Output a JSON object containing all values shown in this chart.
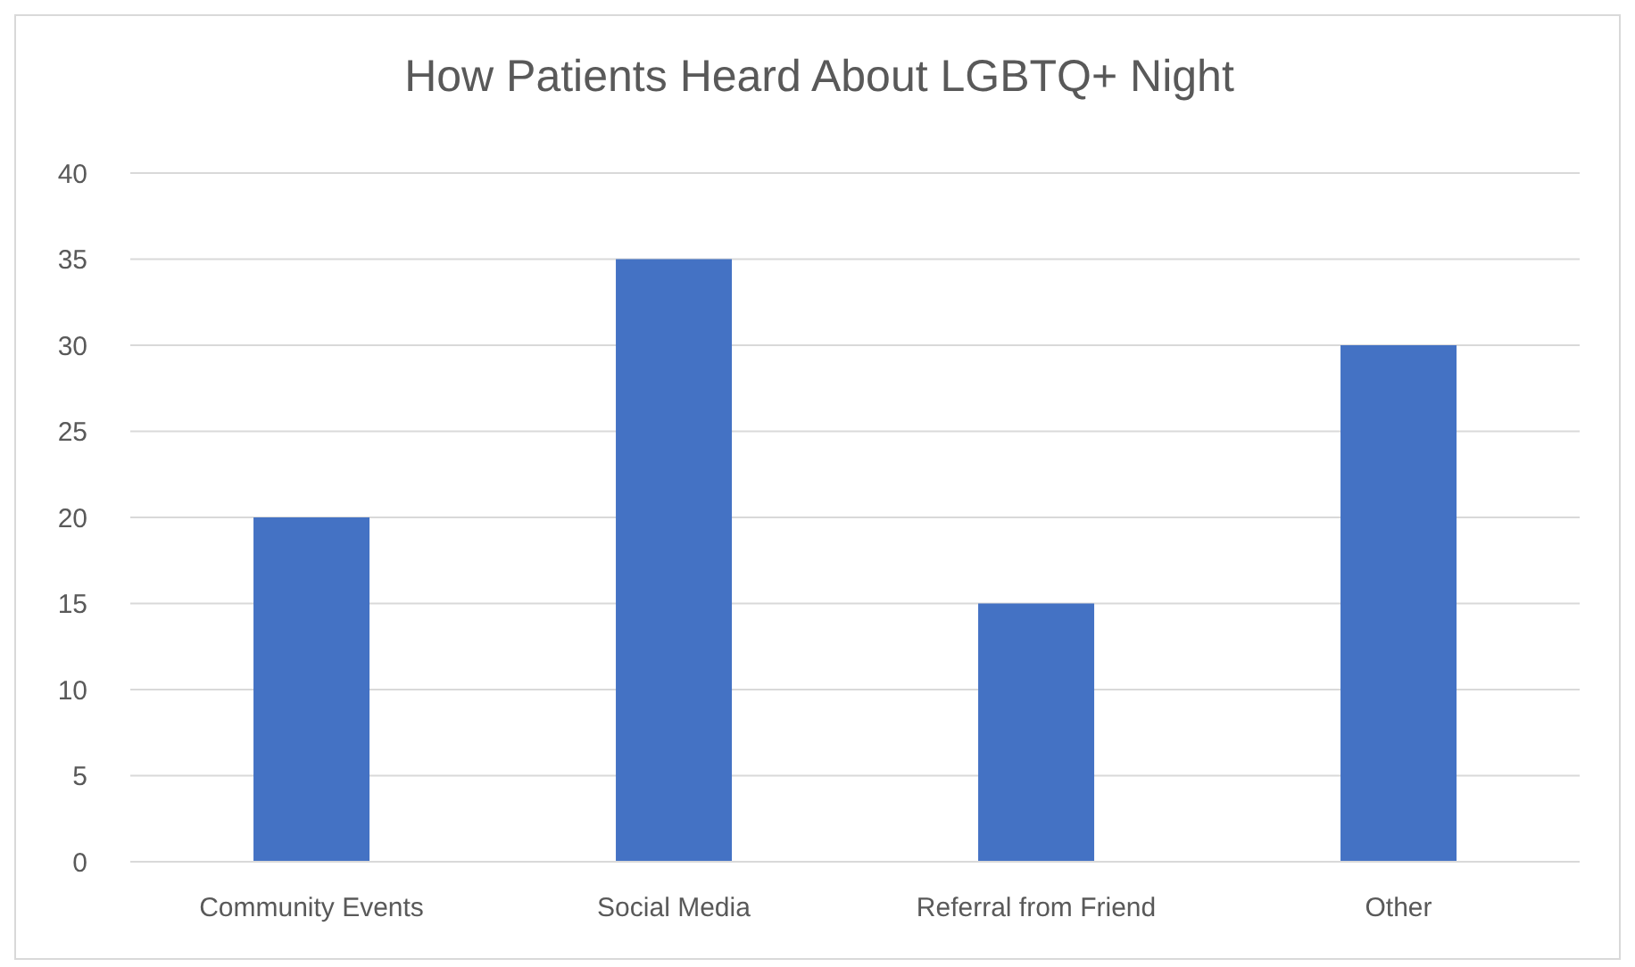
{
  "chart_data": {
    "type": "bar",
    "title": "How Patients Heard About LGBTQ+ Night",
    "categories": [
      "Community Events",
      "Social Media",
      "Referral from Friend",
      "Other"
    ],
    "values": [
      20,
      35,
      15,
      30
    ],
    "color": "#4472c4",
    "ylim": [
      0,
      40
    ],
    "yticks": [
      0,
      5,
      10,
      15,
      20,
      25,
      30,
      35,
      40
    ],
    "grid": "y",
    "legend": false
  }
}
